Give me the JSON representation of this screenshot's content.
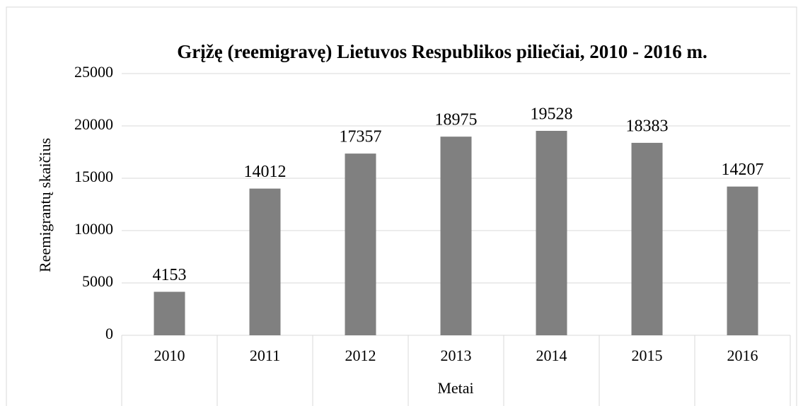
{
  "chart_data": {
    "type": "bar",
    "title": "Grįžę (reemigravę) Lietuvos Respublikos piliečiai, 2010 - 2016 m.",
    "x_label": "Metai",
    "y_label": "Reemigrantų skaičius",
    "categories": [
      "2010",
      "2011",
      "2012",
      "2013",
      "2014",
      "2015",
      "2016"
    ],
    "values": [
      4153,
      14012,
      17357,
      18975,
      19528,
      18383,
      14207
    ],
    "color": "#808080",
    "ylim": [
      0,
      25000
    ],
    "yticks": [
      0,
      5000,
      10000,
      15000,
      20000,
      25000
    ],
    "grid": true
  }
}
